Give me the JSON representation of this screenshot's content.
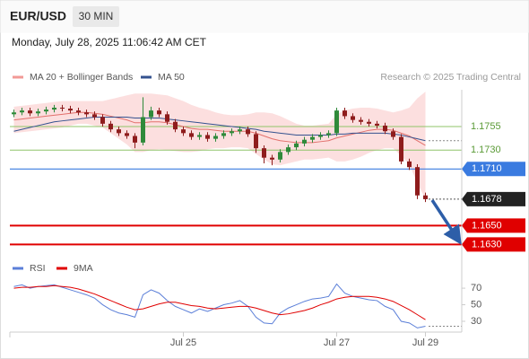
{
  "header": {
    "symbol": "EUR/USD",
    "timeframe": "30 MIN",
    "timestamp": "Monday, July 28, 2025 11:06:42 AM CET",
    "source": "Research © 2025 Trading Central"
  },
  "chart_data": [
    {
      "type": "candlestick",
      "categories": [
        null,
        null,
        null,
        null,
        null,
        null,
        null,
        null,
        null,
        null,
        null,
        null,
        null,
        null,
        null,
        null,
        null,
        null,
        null,
        null,
        null,
        "Jul 25",
        null,
        null,
        null,
        null,
        null,
        null,
        null,
        null,
        null,
        null,
        null,
        null,
        null,
        null,
        null,
        null,
        null,
        null,
        "Jul 27",
        null,
        null,
        null,
        null,
        null,
        null,
        null,
        null,
        null,
        null,
        "Jul 29"
      ],
      "open": [
        1.1768,
        1.177,
        1.1772,
        1.1769,
        1.1771,
        1.1773,
        1.1775,
        1.1774,
        1.1772,
        1.177,
        1.1768,
        1.1765,
        1.1758,
        1.1752,
        1.1748,
        1.1745,
        1.1738,
        1.1765,
        1.1772,
        1.1768,
        1.176,
        1.1752,
        1.1748,
        1.1744,
        1.1746,
        1.1742,
        1.1745,
        1.1748,
        1.175,
        1.1752,
        1.1747,
        1.1732,
        1.1722,
        1.172,
        1.1728,
        1.1733,
        1.1737,
        1.1741,
        1.1744,
        1.1746,
        1.1748,
        1.1772,
        1.1766,
        1.1762,
        1.176,
        1.1758,
        1.1756,
        1.175,
        1.1744,
        1.1718,
        1.1712,
        1.1682
      ],
      "high": [
        1.1773,
        1.1775,
        1.1775,
        1.1774,
        1.1776,
        1.1778,
        1.1778,
        1.1777,
        1.1775,
        1.1773,
        1.1771,
        1.1768,
        1.1761,
        1.1755,
        1.1751,
        1.1748,
        1.1786,
        1.1776,
        1.1775,
        1.1771,
        1.1763,
        1.1755,
        1.1751,
        1.1749,
        1.1749,
        1.1748,
        1.1751,
        1.1753,
        1.1755,
        1.1755,
        1.175,
        1.1735,
        1.1725,
        1.1731,
        1.1736,
        1.174,
        1.1744,
        1.1747,
        1.1749,
        1.1751,
        1.1775,
        1.1775,
        1.1769,
        1.1765,
        1.1763,
        1.1761,
        1.1759,
        1.1753,
        1.1747,
        1.1721,
        1.1715,
        1.1685
      ],
      "low": [
        1.1765,
        1.1767,
        1.1766,
        1.1766,
        1.1768,
        1.177,
        1.1771,
        1.1769,
        1.1767,
        1.1765,
        1.1762,
        1.1755,
        1.1749,
        1.1745,
        1.1742,
        1.1732,
        1.1735,
        1.1762,
        1.1765,
        1.1757,
        1.1749,
        1.1745,
        1.1741,
        1.1741,
        1.1739,
        1.1739,
        1.1742,
        1.1745,
        1.1747,
        1.1744,
        1.1727,
        1.1716,
        1.1714,
        1.1717,
        1.1725,
        1.173,
        1.1734,
        1.1738,
        1.1741,
        1.1743,
        1.1745,
        1.1763,
        1.1759,
        1.1757,
        1.1755,
        1.1753,
        1.1747,
        1.1741,
        1.1715,
        1.1709,
        1.1678,
        1.1675
      ],
      "close": [
        1.177,
        1.1772,
        1.1769,
        1.1771,
        1.1773,
        1.1775,
        1.1774,
        1.1772,
        1.177,
        1.1768,
        1.1765,
        1.1758,
        1.1752,
        1.1748,
        1.1745,
        1.1738,
        1.1765,
        1.1772,
        1.1768,
        1.176,
        1.1752,
        1.1748,
        1.1744,
        1.1746,
        1.1742,
        1.1745,
        1.1748,
        1.175,
        1.1752,
        1.1747,
        1.1732,
        1.1722,
        1.172,
        1.1728,
        1.1733,
        1.1737,
        1.1741,
        1.1744,
        1.1746,
        1.1748,
        1.1772,
        1.1766,
        1.1762,
        1.176,
        1.1758,
        1.1756,
        1.175,
        1.1744,
        1.1718,
        1.1712,
        1.1682,
        1.1678
      ],
      "up_color": "#2f8a3a",
      "down_color": "#8e1c1c",
      "series": [
        {
          "name": "MA 20 + Bollinger Bands",
          "color": "#e2706c",
          "band_color": "#fcd9d9",
          "values": [
            1.1762,
            1.1763,
            1.1764,
            1.1765,
            1.1766,
            1.1767,
            1.1768,
            1.1769,
            1.177,
            1.177,
            1.1769,
            1.1768,
            1.1766,
            1.1764,
            1.1762,
            1.1759,
            1.1759,
            1.176,
            1.176,
            1.1759,
            1.1757,
            1.1755,
            1.1753,
            1.1752,
            1.1752,
            1.1751,
            1.175,
            1.175,
            1.175,
            1.175,
            1.1748,
            1.1745,
            1.1742,
            1.174,
            1.1739,
            1.1738,
            1.1738,
            1.1738,
            1.1739,
            1.174,
            1.1743,
            1.1745,
            1.1747,
            1.1749,
            1.1751,
            1.1752,
            1.1752,
            1.1751,
            1.1748,
            1.1745,
            1.174,
            1.1735
          ],
          "upper": [
            1.1776,
            1.1777,
            1.1778,
            1.1779,
            1.178,
            1.1781,
            1.1782,
            1.1782,
            1.1782,
            1.1782,
            1.1782,
            1.1782,
            1.1784,
            1.1786,
            1.1788,
            1.179,
            1.179,
            1.179,
            1.1789,
            1.1788,
            1.1785,
            1.1782,
            1.1778,
            1.1775,
            1.1773,
            1.177,
            1.1768,
            1.1767,
            1.1767,
            1.1768,
            1.177,
            1.177,
            1.1769,
            1.1766,
            1.1762,
            1.1758,
            1.1756,
            1.1756,
            1.1757,
            1.1758,
            1.1768,
            1.1772,
            1.1774,
            1.1775,
            1.1775,
            1.1774,
            1.1772,
            1.177,
            1.1772,
            1.1775,
            1.1785,
            1.1792
          ],
          "lower": [
            1.1748,
            1.1749,
            1.175,
            1.1751,
            1.1752,
            1.1753,
            1.1754,
            1.1756,
            1.1758,
            1.1758,
            1.1756,
            1.1754,
            1.1748,
            1.1742,
            1.1736,
            1.1728,
            1.1728,
            1.173,
            1.1731,
            1.173,
            1.1729,
            1.1728,
            1.1728,
            1.1729,
            1.1731,
            1.1732,
            1.1732,
            1.1733,
            1.1733,
            1.1732,
            1.1726,
            1.172,
            1.1715,
            1.1714,
            1.1716,
            1.1718,
            1.172,
            1.172,
            1.1721,
            1.1722,
            1.1718,
            1.1718,
            1.172,
            1.1723,
            1.1727,
            1.173,
            1.1732,
            1.1732,
            1.1724,
            1.1715,
            1.1695,
            1.1678
          ]
        },
        {
          "name": "MA 50",
          "color": "#34528f",
          "values": [
            1.175,
            1.1752,
            1.1754,
            1.1756,
            1.1758,
            1.176,
            1.1761,
            1.1762,
            1.1763,
            1.1764,
            1.1765,
            1.1765,
            1.1765,
            1.1765,
            1.1765,
            1.1764,
            1.1764,
            1.1764,
            1.1764,
            1.1763,
            1.1762,
            1.1761,
            1.176,
            1.1759,
            1.1758,
            1.1757,
            1.1756,
            1.1755,
            1.1754,
            1.1753,
            1.1752,
            1.175,
            1.1749,
            1.1748,
            1.1747,
            1.1746,
            1.1746,
            1.1746,
            1.1746,
            1.1746,
            1.1747,
            1.1747,
            1.1748,
            1.1748,
            1.1748,
            1.1748,
            1.1748,
            1.1747,
            1.1746,
            1.1744,
            1.1742,
            1.174
          ]
        }
      ],
      "ylim": [
        1.1618,
        1.1794
      ],
      "levels": [
        {
          "value": 1.1755,
          "label": "1.1755",
          "color": "#8fc46a",
          "style": "text"
        },
        {
          "value": 1.173,
          "label": "1.1730",
          "color": "#8fc46a",
          "style": "text"
        },
        {
          "value": 1.171,
          "label": "1.1710",
          "color": "#3a7be0",
          "style": "box"
        },
        {
          "value": 1.1678,
          "label": "1.1678",
          "color": "#222222",
          "style": "current"
        },
        {
          "value": 1.165,
          "label": "1.1650",
          "color": "#e00000",
          "style": "box"
        },
        {
          "value": 1.163,
          "label": "1.1630",
          "color": "#e00000",
          "style": "box"
        }
      ]
    },
    {
      "type": "line",
      "series": [
        {
          "name": "RSI",
          "color": "#5b7fd8",
          "values": [
            72,
            74,
            70,
            72,
            73,
            74,
            71,
            68,
            65,
            62,
            58,
            50,
            44,
            40,
            38,
            35,
            62,
            68,
            64,
            55,
            48,
            44,
            40,
            45,
            42,
            46,
            50,
            52,
            55,
            48,
            35,
            28,
            27,
            40,
            46,
            50,
            54,
            57,
            58,
            60,
            75,
            64,
            60,
            58,
            56,
            55,
            48,
            44,
            30,
            28,
            22,
            24
          ]
        },
        {
          "name": "9MA",
          "color": "#e00000",
          "values": [
            70,
            71,
            71,
            72,
            72,
            73,
            72,
            71,
            69,
            66,
            63,
            59,
            55,
            51,
            47,
            44,
            45,
            48,
            51,
            53,
            53,
            51,
            49,
            48,
            46,
            45,
            46,
            47,
            48,
            48,
            46,
            43,
            40,
            38,
            39,
            41,
            43,
            46,
            50,
            53,
            57,
            59,
            60,
            60,
            60,
            59,
            57,
            54,
            49,
            44,
            38,
            32
          ]
        }
      ],
      "ylim": [
        17,
        82
      ],
      "yticks": [
        30,
        50,
        70
      ]
    }
  ]
}
